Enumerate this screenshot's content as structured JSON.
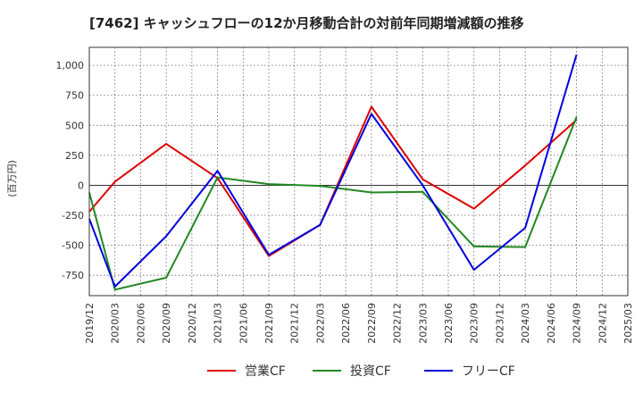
{
  "chart_data": {
    "type": "line",
    "title": "[7462]  キャッシュフローの12か月移動合計の対前年同期増減額の推移",
    "ylabel": "(百万円)",
    "xlabel": "",
    "ylim": [
      -920,
      1150
    ],
    "yticks": [
      -750,
      -500,
      -250,
      0,
      250,
      500,
      750,
      1000
    ],
    "ytick_labels": [
      "-750",
      "-500",
      "-250",
      "0",
      "250",
      "500",
      "750",
      "1,000"
    ],
    "x_categories": [
      "2019/12",
      "2020/03",
      "2020/06",
      "2020/09",
      "2020/12",
      "2021/03",
      "2021/06",
      "2021/09",
      "2021/12",
      "2022/03",
      "2022/06",
      "2022/09",
      "2022/12",
      "2023/03",
      "2023/06",
      "2023/09",
      "2023/12",
      "2024/03",
      "2024/06",
      "2024/09",
      "2024/12",
      "2025/03"
    ],
    "grid": true,
    "legend_position": "bottom",
    "series": [
      {
        "name": "営業CF",
        "color": "#dd0000",
        "points": [
          {
            "x": "2019/12",
            "y": -220
          },
          {
            "x": "2020/03",
            "y": 30
          },
          {
            "x": "2020/09",
            "y": 345
          },
          {
            "x": "2021/03",
            "y": 60
          },
          {
            "x": "2021/09",
            "y": -590
          },
          {
            "x": "2022/03",
            "y": -330
          },
          {
            "x": "2022/09",
            "y": 655
          },
          {
            "x": "2023/03",
            "y": 50
          },
          {
            "x": "2023/09",
            "y": -195
          },
          {
            "x": "2024/03",
            "y": 165
          },
          {
            "x": "2024/09",
            "y": 545
          }
        ]
      },
      {
        "name": "投資CF",
        "color": "#228822",
        "points": [
          {
            "x": "2019/12",
            "y": -60
          },
          {
            "x": "2020/03",
            "y": -870
          },
          {
            "x": "2020/09",
            "y": -770
          },
          {
            "x": "2021/03",
            "y": 65
          },
          {
            "x": "2021/09",
            "y": 10
          },
          {
            "x": "2022/03",
            "y": -5
          },
          {
            "x": "2022/09",
            "y": -60
          },
          {
            "x": "2023/03",
            "y": -55
          },
          {
            "x": "2023/09",
            "y": -510
          },
          {
            "x": "2024/03",
            "y": -515
          },
          {
            "x": "2024/09",
            "y": 570
          }
        ]
      },
      {
        "name": "フリーCF",
        "color": "#0000dd",
        "points": [
          {
            "x": "2019/12",
            "y": -280
          },
          {
            "x": "2020/03",
            "y": -845
          },
          {
            "x": "2020/09",
            "y": -425
          },
          {
            "x": "2021/03",
            "y": 120
          },
          {
            "x": "2021/09",
            "y": -580
          },
          {
            "x": "2022/03",
            "y": -330
          },
          {
            "x": "2022/09",
            "y": 595
          },
          {
            "x": "2023/03",
            "y": 0
          },
          {
            "x": "2023/09",
            "y": -705
          },
          {
            "x": "2024/03",
            "y": -355
          },
          {
            "x": "2024/09",
            "y": 1090
          }
        ]
      }
    ]
  }
}
